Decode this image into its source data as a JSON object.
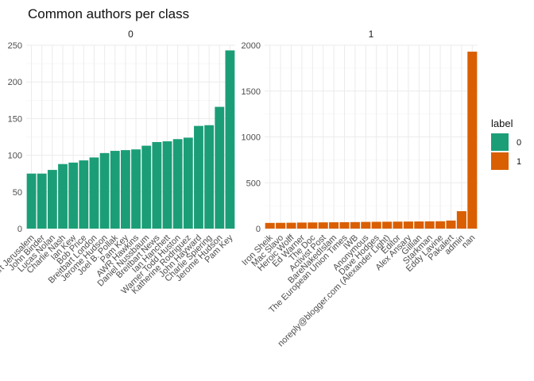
{
  "chart_data": {
    "type": "bar",
    "title": "Common authors per class",
    "xlabel": "",
    "ylabel": "",
    "grid": true,
    "legend": {
      "title": "label",
      "position": "right",
      "entries": [
        {
          "label": "0",
          "color": "#1B9E77"
        },
        {
          "label": "1",
          "color": "#D95F02"
        }
      ]
    },
    "panels": [
      {
        "name": "0",
        "color": "#1B9E77",
        "ylim": [
          0,
          250
        ],
        "yticks": [
          0,
          50,
          100,
          150,
          200,
          250
        ],
        "categories": [
          "Breitbart Jerusalem",
          "John Binder",
          "Lucas Nolan",
          "Charlie Nash",
          "Ian Kew",
          "Bob Price",
          "Breitbart London",
          "Jerome Hudson",
          "Joel B. Pollak",
          "Pam Key",
          "AWR Hawkins",
          "Daniel Nussbaum",
          "Breitbart News",
          "Ian Hanchett",
          "Warner Todd Huston",
          "Katherine Rodriguez",
          "John Hayward",
          "Charlie Spiering",
          "Jerome Hudson",
          "Pam Key"
        ],
        "values": [
          75,
          75,
          80,
          88,
          90,
          93,
          97,
          103,
          106,
          107,
          108,
          113,
          118,
          119,
          122,
          124,
          140,
          141,
          166,
          243
        ]
      },
      {
        "name": "1",
        "color": "#D95F02",
        "ylim": [
          0,
          2000
        ],
        "yticks": [
          0,
          500,
          1000,
          1500,
          2000
        ],
        "categories": [
          "Iron Sheik",
          "Mac Slavo",
          "Heroic Wolff",
          "Ed Warner",
          "The Doc",
          "Activist Post",
          "BareNakedIslam",
          "The European Union Times",
          "IWB",
          "Anonymous",
          "Dave Hodges",
          "noreply@blogger.com (Alexander Light)",
          "Editor",
          "Alex Ansary",
          "Gillian",
          "Starkman",
          "Eddy Lavine",
          "Pakalert",
          "admin",
          "nan"
        ],
        "values": [
          62,
          63,
          64,
          66,
          67,
          68,
          69,
          70,
          71,
          73,
          74,
          75,
          76,
          77,
          78,
          79,
          80,
          88,
          190,
          1930
        ]
      }
    ]
  }
}
